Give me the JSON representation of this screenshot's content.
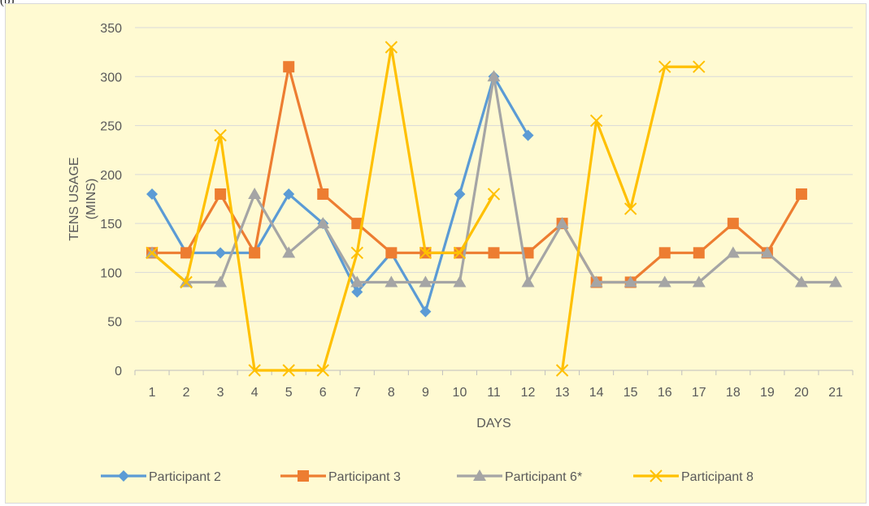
{
  "panel_label": "(b)",
  "colors": {
    "background": "#fffad2",
    "gridline": "#d9d9d9",
    "axis": "#bfbfbf",
    "text": "#595959",
    "participant2": "#5b9bd5",
    "participant3": "#ed7d31",
    "participant6": "#a5a5a5",
    "participant8": "#ffc000"
  },
  "chart_data": {
    "type": "line",
    "xlabel": "DAYS",
    "ylabel_lines": [
      "TENS  USAGE",
      "(MINS)"
    ],
    "x": [
      1,
      2,
      3,
      4,
      5,
      6,
      7,
      8,
      9,
      10,
      11,
      12,
      13,
      14,
      15,
      16,
      17,
      18,
      19,
      20,
      21
    ],
    "x_tick_labels": [
      "1",
      "2",
      "3",
      "4",
      "5",
      "6",
      "7",
      "8",
      "9",
      "10",
      "11",
      "12",
      "13",
      "14",
      "15",
      "16",
      "17",
      "18",
      "19",
      "20",
      "21"
    ],
    "ylim": [
      0,
      350
    ],
    "y_ticks": [
      0,
      50,
      100,
      150,
      200,
      250,
      300,
      350
    ],
    "y_tick_labels": [
      "0",
      "50",
      "100",
      "150",
      "200",
      "250",
      "300",
      "350"
    ],
    "grid": "horizontal",
    "legend_position": "bottom",
    "series": [
      {
        "name": "Participant 2",
        "color": "#5b9bd5",
        "marker": "diamond",
        "values": [
          180,
          120,
          120,
          120,
          180,
          150,
          80,
          120,
          60,
          180,
          300,
          240,
          null,
          null,
          null,
          null,
          null,
          null,
          null,
          null,
          null
        ]
      },
      {
        "name": "Participant 3",
        "color": "#ed7d31",
        "marker": "square",
        "values": [
          120,
          120,
          180,
          120,
          310,
          180,
          150,
          120,
          120,
          120,
          120,
          120,
          150,
          90,
          90,
          120,
          120,
          150,
          120,
          180,
          null
        ]
      },
      {
        "name": "Participant 6*",
        "color": "#a5a5a5",
        "marker": "triangle",
        "values": [
          120,
          90,
          90,
          180,
          120,
          150,
          90,
          90,
          90,
          90,
          300,
          90,
          150,
          90,
          90,
          90,
          90,
          120,
          120,
          90,
          90
        ]
      },
      {
        "name": "Participant 8",
        "color": "#ffc000",
        "marker": "x",
        "values": [
          120,
          90,
          240,
          0,
          0,
          0,
          120,
          330,
          120,
          120,
          180,
          null,
          0,
          255,
          165,
          310,
          310,
          null,
          null,
          null,
          null
        ]
      }
    ]
  }
}
